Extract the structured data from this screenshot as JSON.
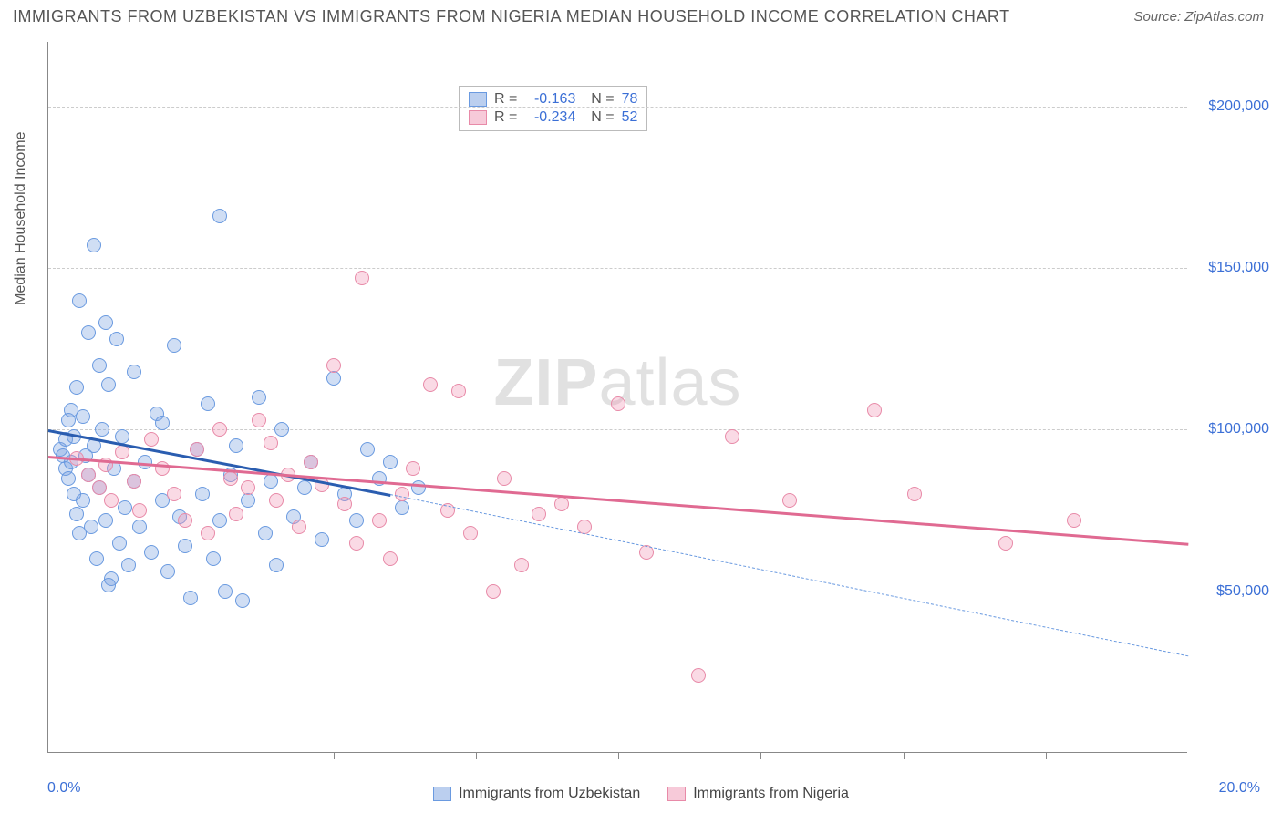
{
  "title": "IMMIGRANTS FROM UZBEKISTAN VS IMMIGRANTS FROM NIGERIA MEDIAN HOUSEHOLD INCOME CORRELATION CHART",
  "source": "Source: ZipAtlas.com",
  "watermark_prefix": "ZIP",
  "watermark_suffix": "atlas",
  "chart": {
    "type": "scatter",
    "xlim": [
      0,
      20
    ],
    "ylim": [
      0,
      220000
    ],
    "x_axis_label_left": "0.0%",
    "x_axis_label_right": "20.0%",
    "y_axis_label": "Median Household Income",
    "y_ticks": [
      {
        "value": 50000,
        "label": "$50,000"
      },
      {
        "value": 100000,
        "label": "$100,000"
      },
      {
        "value": 150000,
        "label": "$150,000"
      },
      {
        "value": 200000,
        "label": "$200,000"
      }
    ],
    "x_tick_positions": [
      2.5,
      5.0,
      7.5,
      10.0,
      12.5,
      15.0,
      17.5
    ],
    "grid_color": "#cccccc",
    "background_color": "#ffffff",
    "marker_radius": 8,
    "marker_fill_opacity": 0.35,
    "series": [
      {
        "name": "Immigrants from Uzbekistan",
        "color_stroke": "#6a9ae0",
        "color_fill": "rgba(120,160,224,0.35)",
        "R": "-0.163",
        "N": "78",
        "trend": {
          "x1": 0,
          "y1": 100000,
          "x2": 6.0,
          "y2": 80000,
          "extrapolate_x2": 20,
          "extrapolate_y2": 30000
        },
        "points": [
          [
            0.2,
            94000
          ],
          [
            0.25,
            92000
          ],
          [
            0.3,
            88000
          ],
          [
            0.3,
            97000
          ],
          [
            0.35,
            103000
          ],
          [
            0.35,
            85000
          ],
          [
            0.4,
            106000
          ],
          [
            0.4,
            90000
          ],
          [
            0.45,
            80000
          ],
          [
            0.45,
            98000
          ],
          [
            0.5,
            113000
          ],
          [
            0.5,
            74000
          ],
          [
            0.55,
            68000
          ],
          [
            0.6,
            104000
          ],
          [
            0.6,
            78000
          ],
          [
            0.65,
            92000
          ],
          [
            0.7,
            130000
          ],
          [
            0.7,
            86000
          ],
          [
            0.75,
            70000
          ],
          [
            0.8,
            157000
          ],
          [
            0.8,
            95000
          ],
          [
            0.85,
            60000
          ],
          [
            0.9,
            120000
          ],
          [
            0.9,
            82000
          ],
          [
            0.95,
            100000
          ],
          [
            1.0,
            133000
          ],
          [
            1.0,
            72000
          ],
          [
            1.05,
            114000
          ],
          [
            1.1,
            54000
          ],
          [
            1.15,
            88000
          ],
          [
            1.2,
            128000
          ],
          [
            1.25,
            65000
          ],
          [
            1.3,
            98000
          ],
          [
            1.35,
            76000
          ],
          [
            1.4,
            58000
          ],
          [
            1.5,
            118000
          ],
          [
            1.5,
            84000
          ],
          [
            1.6,
            70000
          ],
          [
            1.7,
            90000
          ],
          [
            1.8,
            62000
          ],
          [
            1.9,
            105000
          ],
          [
            2.0,
            78000
          ],
          [
            2.1,
            56000
          ],
          [
            2.2,
            126000
          ],
          [
            2.3,
            73000
          ],
          [
            2.4,
            64000
          ],
          [
            2.5,
            48000
          ],
          [
            2.6,
            94000
          ],
          [
            2.7,
            80000
          ],
          [
            2.8,
            108000
          ],
          [
            2.9,
            60000
          ],
          [
            3.0,
            166000
          ],
          [
            3.0,
            72000
          ],
          [
            3.1,
            50000
          ],
          [
            3.2,
            86000
          ],
          [
            3.3,
            95000
          ],
          [
            3.4,
            47000
          ],
          [
            3.5,
            78000
          ],
          [
            3.7,
            110000
          ],
          [
            3.8,
            68000
          ],
          [
            3.9,
            84000
          ],
          [
            4.0,
            58000
          ],
          [
            4.1,
            100000
          ],
          [
            4.3,
            73000
          ],
          [
            4.5,
            82000
          ],
          [
            4.6,
            90000
          ],
          [
            4.8,
            66000
          ],
          [
            5.0,
            116000
          ],
          [
            5.2,
            80000
          ],
          [
            5.4,
            72000
          ],
          [
            5.6,
            94000
          ],
          [
            5.8,
            85000
          ],
          [
            6.0,
            90000
          ],
          [
            6.2,
            76000
          ],
          [
            6.5,
            82000
          ],
          [
            1.05,
            52000
          ],
          [
            0.55,
            140000
          ],
          [
            2.0,
            102000
          ]
        ]
      },
      {
        "name": "Immigrants from Nigeria",
        "color_stroke": "#e88aa8",
        "color_fill": "rgba(240,150,180,0.35)",
        "R": "-0.234",
        "N": "52",
        "trend": {
          "x1": 0,
          "y1": 92000,
          "x2": 20,
          "y2": 65000,
          "extrapolate": false
        },
        "points": [
          [
            0.5,
            91000
          ],
          [
            0.7,
            86000
          ],
          [
            0.9,
            82000
          ],
          [
            1.0,
            89000
          ],
          [
            1.1,
            78000
          ],
          [
            1.3,
            93000
          ],
          [
            1.5,
            84000
          ],
          [
            1.6,
            75000
          ],
          [
            1.8,
            97000
          ],
          [
            2.0,
            88000
          ],
          [
            2.2,
            80000
          ],
          [
            2.4,
            72000
          ],
          [
            2.6,
            94000
          ],
          [
            2.8,
            68000
          ],
          [
            3.0,
            100000
          ],
          [
            3.2,
            85000
          ],
          [
            3.3,
            74000
          ],
          [
            3.5,
            82000
          ],
          [
            3.7,
            103000
          ],
          [
            3.9,
            96000
          ],
          [
            4.0,
            78000
          ],
          [
            4.2,
            86000
          ],
          [
            4.4,
            70000
          ],
          [
            4.6,
            90000
          ],
          [
            4.8,
            83000
          ],
          [
            5.0,
            120000
          ],
          [
            5.2,
            77000
          ],
          [
            5.4,
            65000
          ],
          [
            5.5,
            147000
          ],
          [
            5.8,
            72000
          ],
          [
            6.0,
            60000
          ],
          [
            6.2,
            80000
          ],
          [
            6.4,
            88000
          ],
          [
            6.7,
            114000
          ],
          [
            7.0,
            75000
          ],
          [
            7.2,
            112000
          ],
          [
            7.4,
            68000
          ],
          [
            7.8,
            50000
          ],
          [
            8.0,
            85000
          ],
          [
            8.3,
            58000
          ],
          [
            8.6,
            74000
          ],
          [
            9.0,
            77000
          ],
          [
            9.4,
            70000
          ],
          [
            10.0,
            108000
          ],
          [
            10.5,
            62000
          ],
          [
            11.4,
            24000
          ],
          [
            12.0,
            98000
          ],
          [
            13.0,
            78000
          ],
          [
            14.5,
            106000
          ],
          [
            15.2,
            80000
          ],
          [
            16.8,
            65000
          ],
          [
            18.0,
            72000
          ]
        ]
      }
    ]
  },
  "legend_bottom": [
    {
      "label": "Immigrants from Uzbekistan",
      "fill": "rgba(120,160,224,0.5)",
      "stroke": "#6a9ae0"
    },
    {
      "label": "Immigrants from Nigeria",
      "fill": "rgba(240,150,180,0.5)",
      "stroke": "#e88aa8"
    }
  ]
}
